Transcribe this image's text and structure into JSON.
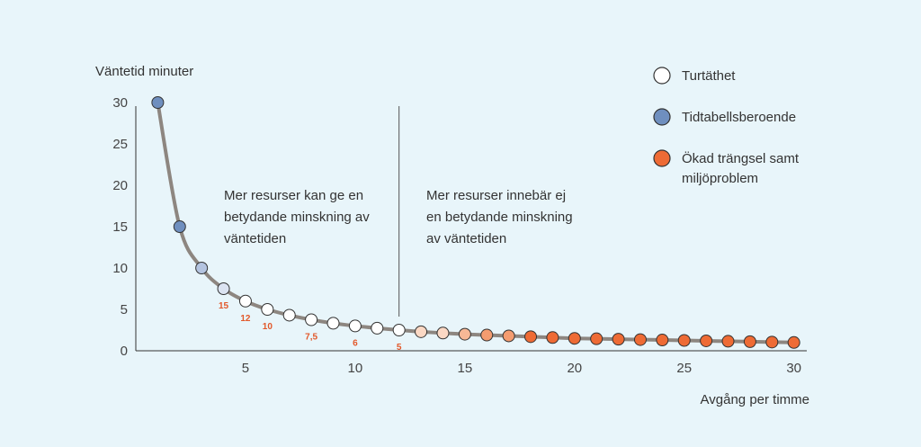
{
  "chart_data": {
    "type": "scatter",
    "ylabel": "Väntetid minuter",
    "xlabel": "Avgång per timme",
    "xlim": [
      0,
      30.3
    ],
    "ylim": [
      0,
      30
    ],
    "xticks": [
      5,
      10,
      15,
      20,
      25,
      30
    ],
    "yticks": [
      0,
      5,
      10,
      15,
      20,
      25,
      30
    ],
    "grid": false,
    "legend_position": "top-right",
    "legend": [
      {
        "label": "Turtäthet",
        "color": "#ffffff"
      },
      {
        "label": "Tidtabellsberoende",
        "color": "#6f8fbf"
      },
      {
        "label": "Ökad trängsel samt miljöproblem",
        "color": "#ee6b35"
      }
    ],
    "annotations": [
      {
        "lines": [
          "Mer resurser kan ge en",
          "betydande minskning av",
          "väntetiden"
        ]
      },
      {
        "lines": [
          "Mer resurser innebär ej",
          "en betydande minskning",
          "av väntetiden"
        ]
      }
    ],
    "divider_x": 12,
    "curve_color": "#8d8680",
    "points": [
      {
        "x": 1,
        "y": 30,
        "color": "#6f8fbf"
      },
      {
        "x": 2,
        "y": 15,
        "color": "#6f8fbf"
      },
      {
        "x": 3,
        "y": 10,
        "color": "#b4c4e0"
      },
      {
        "x": 4,
        "y": 7.5,
        "color": "#dbe3f1",
        "label": "15"
      },
      {
        "x": 5,
        "y": 6,
        "color": "#ffffff",
        "label": "12"
      },
      {
        "x": 6,
        "y": 5,
        "color": "#ffffff",
        "label": "10"
      },
      {
        "x": 7,
        "y": 4.3,
        "color": "#ffffff"
      },
      {
        "x": 8,
        "y": 3.75,
        "color": "#ffffff",
        "label": "7,5"
      },
      {
        "x": 9,
        "y": 3.33,
        "color": "#ffffff"
      },
      {
        "x": 10,
        "y": 3,
        "color": "#ffffff",
        "label": "6"
      },
      {
        "x": 11,
        "y": 2.73,
        "color": "#ffffff"
      },
      {
        "x": 12,
        "y": 2.5,
        "color": "#ffffff",
        "label": "5"
      },
      {
        "x": 13,
        "y": 2.3,
        "color": "#fbd8c4"
      },
      {
        "x": 14,
        "y": 2.14,
        "color": "#fbd8c4"
      },
      {
        "x": 15,
        "y": 2,
        "color": "#f7b896"
      },
      {
        "x": 16,
        "y": 1.9,
        "color": "#f49c70"
      },
      {
        "x": 17,
        "y": 1.8,
        "color": "#f49c70"
      },
      {
        "x": 18,
        "y": 1.7,
        "color": "#ee6b35"
      },
      {
        "x": 19,
        "y": 1.6,
        "color": "#ee6b35"
      },
      {
        "x": 20,
        "y": 1.5,
        "color": "#ee6b35"
      },
      {
        "x": 21,
        "y": 1.45,
        "color": "#ee6b35"
      },
      {
        "x": 22,
        "y": 1.4,
        "color": "#ee6b35"
      },
      {
        "x": 23,
        "y": 1.35,
        "color": "#ee6b35"
      },
      {
        "x": 24,
        "y": 1.3,
        "color": "#ee6b35"
      },
      {
        "x": 25,
        "y": 1.25,
        "color": "#ee6b35"
      },
      {
        "x": 26,
        "y": 1.2,
        "color": "#ee6b35"
      },
      {
        "x": 27,
        "y": 1.15,
        "color": "#ee6b35"
      },
      {
        "x": 28,
        "y": 1.1,
        "color": "#ee6b35"
      },
      {
        "x": 29,
        "y": 1.05,
        "color": "#ee6b35"
      },
      {
        "x": 30,
        "y": 1,
        "color": "#ee6b35"
      }
    ]
  }
}
